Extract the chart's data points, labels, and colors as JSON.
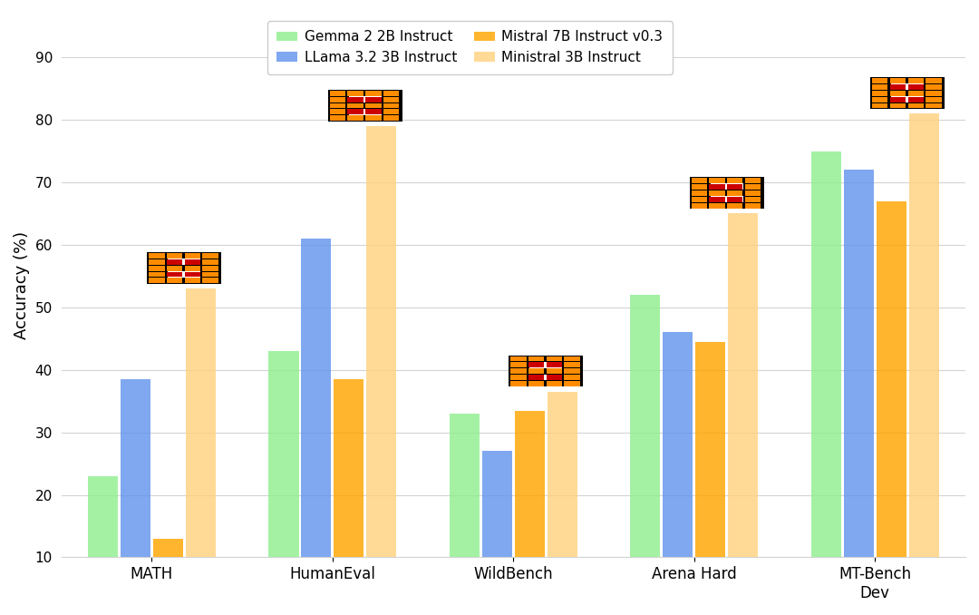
{
  "categories": [
    "MATH",
    "HumanEval",
    "WildBench",
    "Arena Hard",
    "MT-Bench\nDev"
  ],
  "series": {
    "Gemma 2 2B Instruct": [
      23,
      43,
      33,
      52,
      75
    ],
    "LLama 3.2 3B Instruct": [
      38.5,
      61,
      27,
      46,
      72
    ],
    "Mistral 7B Instruct v0.3": [
      13,
      38.5,
      33.5,
      44.5,
      67
    ],
    "Ministral 3B Instruct": [
      53,
      79,
      36.5,
      65,
      81
    ]
  },
  "colors": {
    "Gemma 2 2B Instruct": "#90EE90",
    "LLama 3.2 3B Instruct": "#6495ED",
    "Mistral 7B Instruct v0.3": "#FFA500",
    "Ministral 3B Instruct": "#FFD280"
  },
  "ylabel": "Accuracy (%)",
  "ylim": [
    10,
    97
  ],
  "yticks": [
    10,
    20,
    30,
    40,
    50,
    60,
    70,
    80,
    90
  ],
  "background_color": "#FFFFFF",
  "bar_width": 0.18,
  "alpha": 0.82
}
